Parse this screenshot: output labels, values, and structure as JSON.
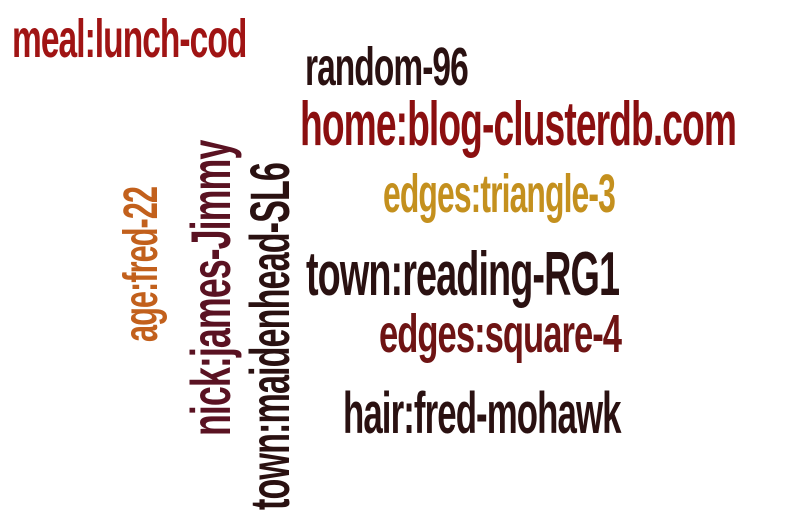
{
  "cloud": {
    "words": {
      "meal": {
        "text": "meal:lunch-cod",
        "color": "#a01414"
      },
      "random": {
        "text": "random-96",
        "color": "#2a1111"
      },
      "home": {
        "text": "home:blog-clusterdb.com",
        "color": "#8b0f10"
      },
      "edges3": {
        "text": "edges:triangle-3",
        "color": "#c4901e"
      },
      "town": {
        "text": "town:reading-RG1",
        "color": "#2a1111"
      },
      "edges4": {
        "text": "edges:square-4",
        "color": "#6e1414"
      },
      "hair": {
        "text": "hair:fred-mohawk",
        "color": "#2a1111"
      },
      "age": {
        "text": "age:fred-22",
        "color": "#c2601c"
      },
      "nick": {
        "text": "nick:james-Jimmy",
        "color": "#5a1222"
      },
      "maiden": {
        "text": "town:maidenhead-SL6",
        "color": "#2a1111"
      }
    }
  }
}
